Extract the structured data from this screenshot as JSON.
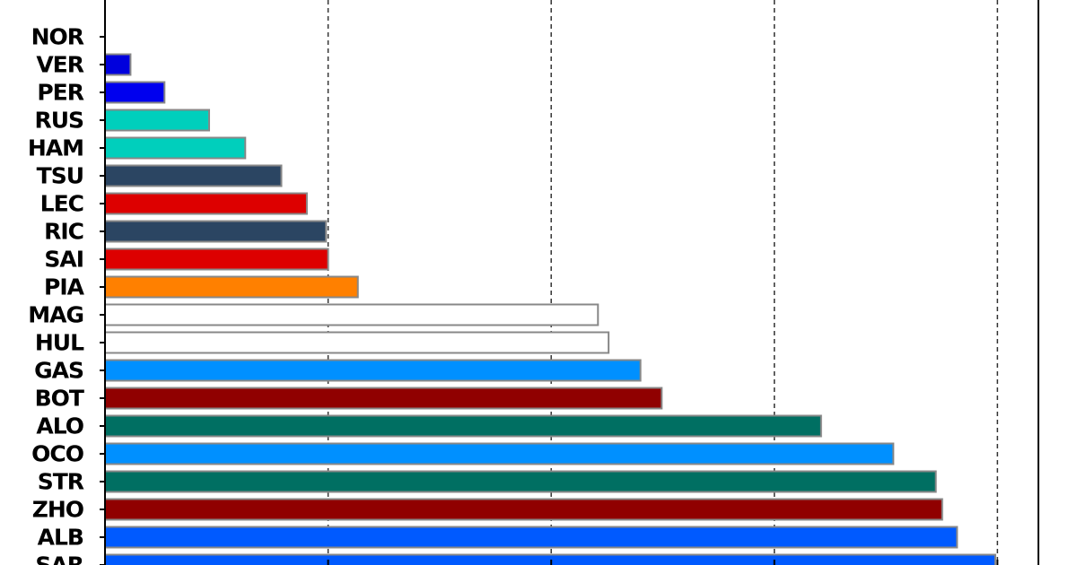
{
  "chart_data": {
    "type": "bar",
    "orientation": "horizontal",
    "title": "",
    "xlabel": "",
    "ylabel": "",
    "grid": "vertical-dashed",
    "xlim": [
      0,
      420
    ],
    "categories": [
      "NOR",
      "VER",
      "PER",
      "RUS",
      "HAM",
      "TSU",
      "LEC",
      "RIC",
      "SAI",
      "PIA",
      "MAG",
      "HUL",
      "GAS",
      "BOT",
      "ALO",
      "OCO",
      "STR",
      "ZHO",
      "ALB",
      "SAR"
    ],
    "values": [
      0,
      6,
      14,
      24.5,
      33,
      41.5,
      47.5,
      52,
      52.5,
      59.5,
      116,
      118.5,
      126,
      131,
      168.5,
      185.5,
      195.5,
      197,
      200.5,
      209.5
    ],
    "colors": [
      "#ffffff",
      "#0000dd",
      "#0000ee",
      "#00cfbc",
      "#00cfbc",
      "#2b4562",
      "#dd0000",
      "#2b4562",
      "#dd0000",
      "#ff8000",
      "#ffffff",
      "#ffffff",
      "#0090ff",
      "#900000",
      "#006f62",
      "#0090ff",
      "#006f62",
      "#900000",
      "#005aff",
      "#005aff"
    ]
  }
}
